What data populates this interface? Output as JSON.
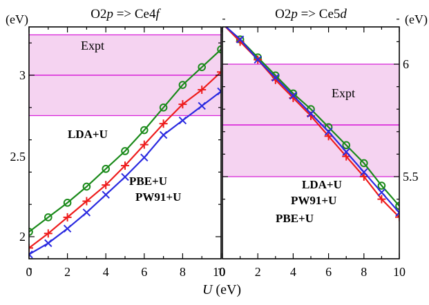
{
  "chart_data": [
    {
      "type": "line",
      "title_parts": [
        "O2",
        "p",
        " => Ce",
        "4",
        "f"
      ],
      "ylabel": "(eV)",
      "x": [
        0,
        1,
        2,
        3,
        4,
        5,
        6,
        7,
        8,
        9,
        10
      ],
      "xlim": [
        0,
        10
      ],
      "ylim": [
        1.8,
        3.25
      ],
      "xticks": [
        "0",
        "2",
        "4",
        "6",
        "8",
        "10"
      ],
      "yticks": [
        "2",
        "2.5",
        "3"
      ],
      "expt": {
        "label": "Expt",
        "value": 3.0,
        "low": 2.75,
        "high": 3.25
      },
      "series": [
        {
          "name": "LDA+U",
          "marker": "circle",
          "color": "#1a8a1a",
          "values": [
            2.03,
            2.12,
            2.21,
            2.31,
            2.42,
            2.53,
            2.66,
            2.8,
            2.94,
            3.05,
            3.16
          ]
        },
        {
          "name": "PW91+U",
          "marker": "plus",
          "color": "#ee1c1c",
          "values": [
            1.93,
            2.02,
            2.12,
            2.22,
            2.32,
            2.44,
            2.57,
            2.7,
            2.82,
            2.91,
            3.02
          ]
        },
        {
          "name": "PBE+U",
          "marker": "cross",
          "color": "#2a2ae0",
          "values": [
            1.89,
            1.96,
            2.05,
            2.15,
            2.26,
            2.37,
            2.49,
            2.63,
            2.72,
            2.81,
            2.9
          ]
        }
      ]
    },
    {
      "type": "line",
      "title_parts": [
        "O2",
        "p",
        " => Ce",
        "5",
        "d"
      ],
      "ylabel": "(eV)",
      "x": [
        0,
        1,
        2,
        3,
        4,
        5,
        6,
        7,
        8,
        9,
        10
      ],
      "xlim": [
        0,
        10
      ],
      "ylim": [
        5.32,
        6.21
      ],
      "xticks": [
        "0",
        "2",
        "4",
        "6",
        "8",
        "10"
      ],
      "yticks": [
        "5.5",
        "6"
      ],
      "expt": {
        "label": "Expt",
        "value": 5.73,
        "low": 5.5,
        "high": 6.0
      },
      "series": [
        {
          "name": "LDA+U",
          "marker": "circle",
          "color": "#1a8a1a",
          "values": [
            6.18,
            6.11,
            6.03,
            5.95,
            5.87,
            5.8,
            5.72,
            5.64,
            5.56,
            5.46,
            5.37
          ]
        },
        {
          "name": "PW91+U",
          "marker": "plus",
          "color": "#ee1c1c",
          "values": [
            6.18,
            6.1,
            6.02,
            5.93,
            5.85,
            5.77,
            5.68,
            5.59,
            5.5,
            5.4,
            5.32
          ]
        },
        {
          "name": "PBE+U",
          "marker": "cross",
          "color": "#2a2ae0",
          "values": [
            6.18,
            6.11,
            6.02,
            5.94,
            5.86,
            5.78,
            5.7,
            5.61,
            5.52,
            5.43,
            5.34
          ]
        }
      ]
    }
  ],
  "xlabel_italic": "U",
  "xlabel_rest": " (eV)",
  "colors": {
    "expt_band": "#f5d3f1",
    "expt_line": "#d81fd8"
  }
}
